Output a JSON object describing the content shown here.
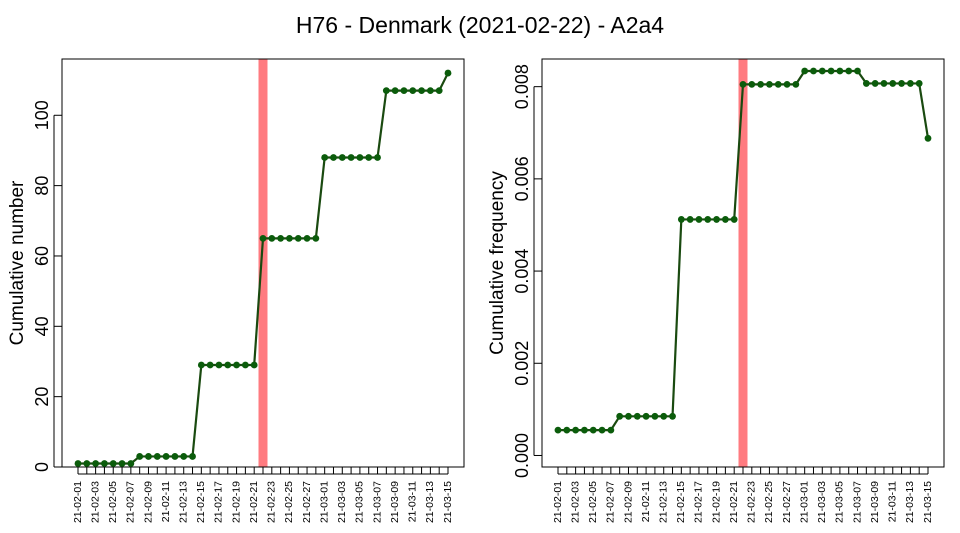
{
  "title": "H76 - Denmark (2021-02-22) - A2a4",
  "colors": {
    "line": "#1a4a10",
    "point": "#0b5c0b",
    "marker_band": "#ff7b80",
    "frame": "#000000"
  },
  "chart_data": [
    {
      "type": "line",
      "ylabel": "Cumulative number",
      "xlabel": "",
      "ylim": [
        0,
        116
      ],
      "yticks": [
        "0",
        "20",
        "40",
        "60",
        "80",
        "100"
      ],
      "highlight_date": "21-02-22",
      "x": [
        "21-02-01",
        "21-02-02",
        "21-02-03",
        "21-02-04",
        "21-02-05",
        "21-02-06",
        "21-02-07",
        "21-02-08",
        "21-02-09",
        "21-02-10",
        "21-02-11",
        "21-02-12",
        "21-02-13",
        "21-02-14",
        "21-02-15",
        "21-02-16",
        "21-02-17",
        "21-02-18",
        "21-02-19",
        "21-02-20",
        "21-02-21",
        "21-02-22",
        "21-02-23",
        "21-02-24",
        "21-02-25",
        "21-02-26",
        "21-02-27",
        "21-02-28",
        "21-03-01",
        "21-03-02",
        "21-03-03",
        "21-03-04",
        "21-03-05",
        "21-03-06",
        "21-03-07",
        "21-03-08",
        "21-03-09",
        "21-03-10",
        "21-03-11",
        "21-03-12",
        "21-03-13",
        "21-03-14",
        "21-03-15"
      ],
      "xtick_labels": [
        "21-02-01",
        "21-02-03",
        "21-02-05",
        "21-02-07",
        "21-02-09",
        "21-02-11",
        "21-02-13",
        "21-02-15",
        "21-02-17",
        "21-02-19",
        "21-02-21",
        "21-02-23",
        "21-02-25",
        "21-02-27",
        "21-03-01",
        "21-03-03",
        "21-03-05",
        "21-03-07",
        "21-03-09",
        "21-03-11",
        "21-03-13",
        "21-03-15"
      ],
      "series": [
        {
          "values": [
            1,
            1,
            1,
            1,
            1,
            1,
            1,
            3,
            3,
            3,
            3,
            3,
            3,
            3,
            29,
            29,
            29,
            29,
            29,
            29,
            29,
            65,
            65,
            65,
            65,
            65,
            65,
            65,
            88,
            88,
            88,
            88,
            88,
            88,
            88,
            107,
            107,
            107,
            107,
            107,
            107,
            107,
            112
          ]
        }
      ]
    },
    {
      "type": "line",
      "ylabel": "Cumulative frequency",
      "xlabel": "",
      "ylim": [
        -0.00025,
        0.0086
      ],
      "yticks": [
        "0.000",
        "0.002",
        "0.004",
        "0.006",
        "0.008"
      ],
      "highlight_date": "21-02-22",
      "x": [
        "21-02-01",
        "21-02-02",
        "21-02-03",
        "21-02-04",
        "21-02-05",
        "21-02-06",
        "21-02-07",
        "21-02-08",
        "21-02-09",
        "21-02-10",
        "21-02-11",
        "21-02-12",
        "21-02-13",
        "21-02-14",
        "21-02-15",
        "21-02-16",
        "21-02-17",
        "21-02-18",
        "21-02-19",
        "21-02-20",
        "21-02-21",
        "21-02-22",
        "21-02-23",
        "21-02-24",
        "21-02-25",
        "21-02-26",
        "21-02-27",
        "21-02-28",
        "21-03-01",
        "21-03-02",
        "21-03-03",
        "21-03-04",
        "21-03-05",
        "21-03-06",
        "21-03-07",
        "21-03-08",
        "21-03-09",
        "21-03-10",
        "21-03-11",
        "21-03-12",
        "21-03-13",
        "21-03-14",
        "21-03-15"
      ],
      "xtick_labels": [
        "21-02-01",
        "21-02-03",
        "21-02-05",
        "21-02-07",
        "21-02-09",
        "21-02-11",
        "21-02-13",
        "21-02-15",
        "21-02-17",
        "21-02-19",
        "21-02-21",
        "21-02-23",
        "21-02-25",
        "21-02-27",
        "21-03-01",
        "21-03-03",
        "21-03-05",
        "21-03-07",
        "21-03-09",
        "21-03-11",
        "21-03-13",
        "21-03-15"
      ],
      "series": [
        {
          "values": [
            0.00055,
            0.00055,
            0.00055,
            0.00055,
            0.00055,
            0.00055,
            0.00055,
            0.00085,
            0.00085,
            0.00085,
            0.00085,
            0.00085,
            0.00085,
            0.00085,
            0.00512,
            0.00512,
            0.00512,
            0.00512,
            0.00512,
            0.00512,
            0.00512,
            0.00805,
            0.00805,
            0.00805,
            0.00805,
            0.00805,
            0.00805,
            0.00805,
            0.00834,
            0.00834,
            0.00834,
            0.00834,
            0.00834,
            0.00834,
            0.00834,
            0.00807,
            0.00807,
            0.00807,
            0.00807,
            0.00807,
            0.00807,
            0.00807,
            0.00688
          ]
        }
      ]
    }
  ]
}
